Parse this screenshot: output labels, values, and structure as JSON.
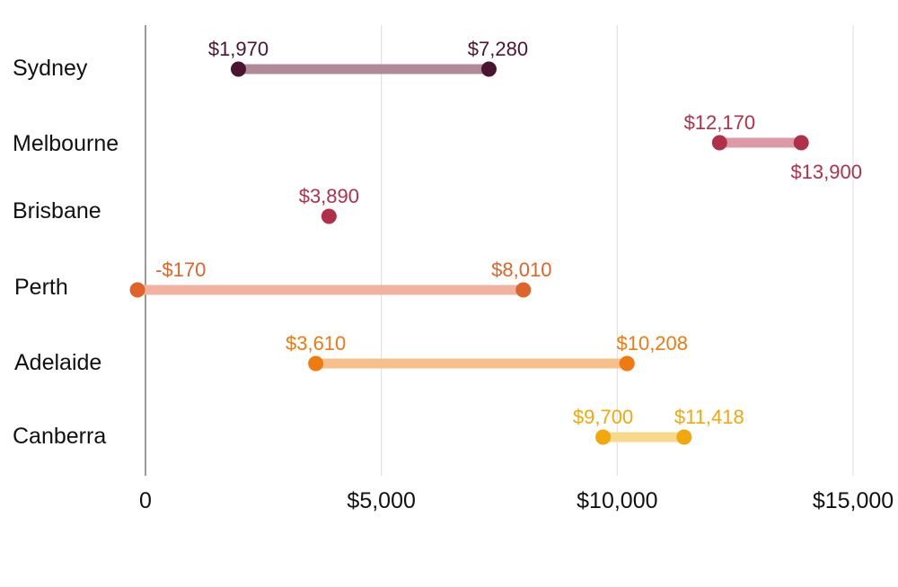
{
  "chart_data": {
    "type": "dumbbell",
    "title": "",
    "xlabel": "",
    "ylabel": "",
    "xlim": [
      0,
      15000
    ],
    "grid": true,
    "legend": "none",
    "x_ticks": [
      {
        "value": 0,
        "label": "0"
      },
      {
        "value": 5000,
        "label": "$5,000"
      },
      {
        "value": 10000,
        "label": "$10,000"
      },
      {
        "value": 15000,
        "label": "$15,000"
      }
    ],
    "categories": [
      "Sydney",
      "Melbourne",
      "Brisbane",
      "Perth",
      "Adelaide",
      "Canberra"
    ],
    "rows": [
      {
        "category": "Sydney",
        "start": 1970,
        "end": 7280,
        "start_label": "$1,970",
        "end_label": "$7,280",
        "dot_color": "#4a1530",
        "bar_color": "#b08a98",
        "label_color": "#4a1530",
        "end_label_position": "above"
      },
      {
        "category": "Melbourne",
        "start": 12170,
        "end": 13900,
        "start_label": "$12,170",
        "end_label": "$13,900",
        "dot_color": "#b0304a",
        "bar_color": "#dc9aa6",
        "label_color": "#b0304a",
        "end_label_position": "below"
      },
      {
        "category": "Brisbane",
        "start": 3890,
        "end": 3890,
        "start_label": "$3,890",
        "end_label": "",
        "dot_color": "#b0304a",
        "bar_color": "#dc9aa6",
        "label_color": "#b0304a",
        "end_label_position": "above"
      },
      {
        "category": "Perth",
        "start": -170,
        "end": 8010,
        "start_label": "-$170",
        "end_label": "$8,010",
        "dot_color": "#e0632a",
        "bar_color": "#f2b2a0",
        "label_color": "#e0632a",
        "end_label_position": "above"
      },
      {
        "category": "Adelaide",
        "start": 3610,
        "end": 10208,
        "start_label": "$3,610",
        "end_label": "$10,208",
        "dot_color": "#ef7a10",
        "bar_color": "#f7bf8a",
        "label_color": "#ef7a10",
        "end_label_position": "above"
      },
      {
        "category": "Canberra",
        "start": 9700,
        "end": 11418,
        "start_label": "$9,700",
        "end_label": "$11,418",
        "dot_color": "#f2a80c",
        "bar_color": "#f7d98c",
        "label_color": "#f2a80c",
        "end_label_position": "above"
      }
    ]
  }
}
